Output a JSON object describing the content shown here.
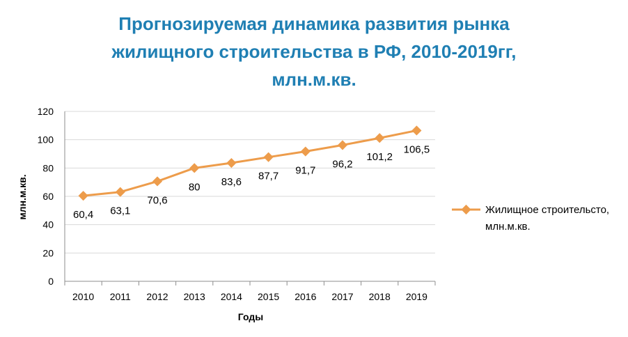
{
  "chart_data": {
    "type": "line",
    "title_lines": [
      "Прогнозируемая динамика развития рынка",
      "жилищного строительства в РФ, 2010-2019гг,",
      "млн.м.кв."
    ],
    "categories": [
      "2010",
      "2011",
      "2012",
      "2013",
      "2014",
      "2015",
      "2016",
      "2017",
      "2018",
      "2019"
    ],
    "series": [
      {
        "name_lines": [
          "Жилищное строительсто,",
          "млн.м.кв."
        ],
        "values": [
          60.4,
          63.1,
          70.6,
          80,
          83.6,
          87.7,
          91.7,
          96.2,
          101.2,
          106.5
        ],
        "labels": [
          "60,4",
          "63,1",
          "70,6",
          "80",
          "83,6",
          "87,7",
          "91,7",
          "96,2",
          "101,2",
          "106,5"
        ],
        "color": "#ed9c4b"
      }
    ],
    "xlabel": "Годы",
    "ylabel": "млн.м.кв.",
    "ylim": [
      0,
      120
    ],
    "yticks": [
      "0",
      "20",
      "40",
      "60",
      "80",
      "100",
      "120"
    ],
    "grid": true,
    "legend_position": "right",
    "colors": {
      "title": "#1f7fb3",
      "grid": "#d9d9d9",
      "axis": "#8c8c8c"
    }
  }
}
